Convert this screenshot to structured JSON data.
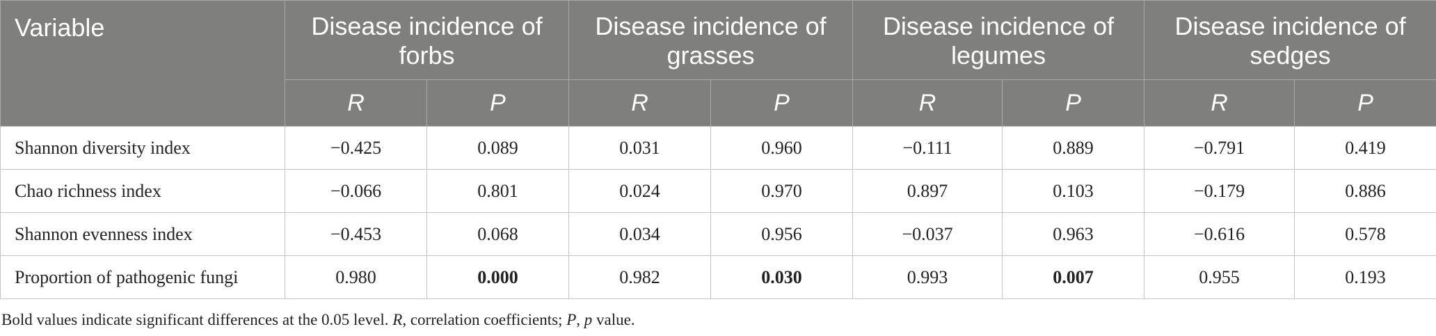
{
  "table": {
    "variable_header": "Variable",
    "groups": [
      {
        "label_line1": "Disease incidence of",
        "label_line2": "forbs"
      },
      {
        "label_line1": "Disease incidence of",
        "label_line2": "grasses"
      },
      {
        "label_line1": "Disease incidence of",
        "label_line2": "legumes"
      },
      {
        "label_line1": "Disease incidence of",
        "label_line2": "sedges"
      }
    ],
    "sub_headers": [
      "R",
      "P",
      "R",
      "P",
      "R",
      "P",
      "R",
      "P"
    ],
    "rows": [
      {
        "variable": "Shannon diversity index",
        "values": [
          "−0.425",
          "0.089",
          "0.031",
          "0.960",
          "−0.111",
          "0.889",
          "−0.791",
          "0.419"
        ]
      },
      {
        "variable": "Chao richness index",
        "values": [
          "−0.066",
          "0.801",
          "0.024",
          "0.970",
          "0.897",
          "0.103",
          "−0.179",
          "0.886"
        ]
      },
      {
        "variable": "Shannon evenness index",
        "values": [
          "−0.453",
          "0.068",
          "0.034",
          "0.956",
          "−0.037",
          "0.963",
          "−0.616",
          "0.578"
        ]
      },
      {
        "variable": "Proportion of pathogenic fungi",
        "values": [
          "0.980",
          "0.000",
          "0.982",
          "0.030",
          "0.993",
          "0.007",
          "0.955",
          "0.193"
        ]
      }
    ]
  },
  "footnote": {
    "part1": "Bold values indicate significant differences at the 0.05 level. ",
    "r_symbol": "R",
    "part2": ", correlation coefficients; ",
    "p_symbol": "P",
    "part3": ", ",
    "p_lower": "p",
    "part4": " value."
  }
}
